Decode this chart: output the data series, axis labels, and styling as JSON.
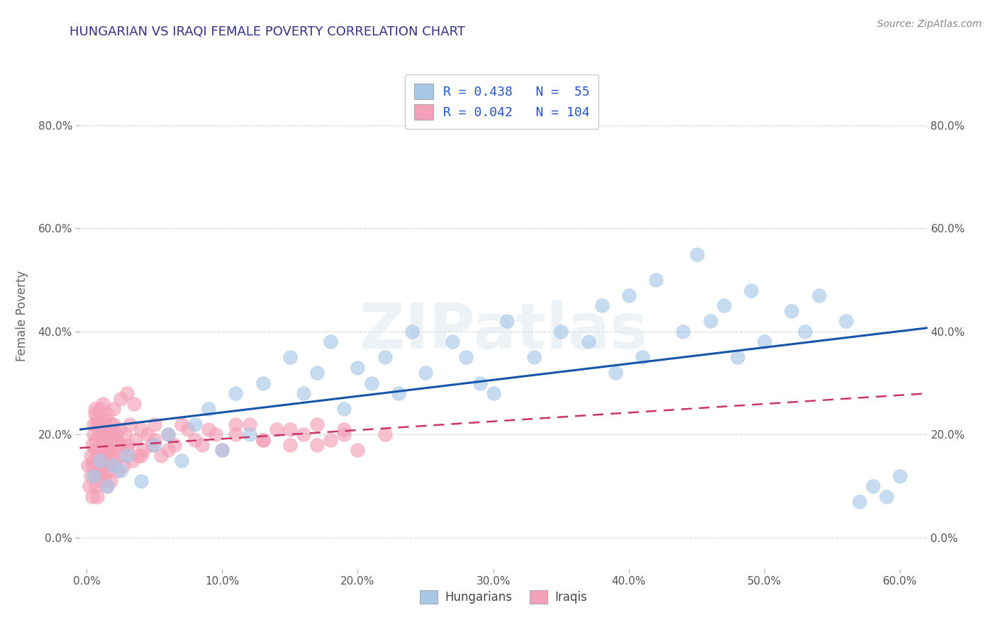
{
  "title": "HUNGARIAN VS IRAQI FEMALE POVERTY CORRELATION CHART",
  "source_text": "Source: ZipAtlas.com",
  "ylabel": "Female Poverty",
  "xlim": [
    -0.005,
    0.62
  ],
  "ylim": [
    -0.06,
    0.92
  ],
  "xticks": [
    0.0,
    0.1,
    0.2,
    0.3,
    0.4,
    0.5,
    0.6
  ],
  "yticks": [
    0.0,
    0.2,
    0.4,
    0.6,
    0.8
  ],
  "legend_line1": "R = 0.438   N =  55",
  "legend_line2": "R = 0.042   N = 104",
  "watermark": "ZIPatlas",
  "blue_color": "#a8c8e8",
  "pink_color": "#f4a0b8",
  "trend_blue": "#1555aa",
  "trend_pink": "#cc3366",
  "background_color": "#ffffff",
  "grid_color": "#cccccc",
  "title_color": "#333388",
  "hun_x": [
    0.005,
    0.01,
    0.015,
    0.02,
    0.025,
    0.03,
    0.04,
    0.05,
    0.06,
    0.07,
    0.08,
    0.09,
    0.1,
    0.11,
    0.12,
    0.13,
    0.15,
    0.16,
    0.17,
    0.18,
    0.19,
    0.2,
    0.21,
    0.22,
    0.23,
    0.24,
    0.25,
    0.27,
    0.28,
    0.29,
    0.3,
    0.31,
    0.33,
    0.35,
    0.37,
    0.38,
    0.39,
    0.4,
    0.41,
    0.42,
    0.44,
    0.45,
    0.46,
    0.47,
    0.48,
    0.49,
    0.5,
    0.52,
    0.53,
    0.54,
    0.56,
    0.57,
    0.58,
    0.59,
    0.6
  ],
  "hun_y": [
    0.12,
    0.15,
    0.1,
    0.14,
    0.13,
    0.16,
    0.11,
    0.18,
    0.2,
    0.15,
    0.22,
    0.25,
    0.17,
    0.28,
    0.2,
    0.3,
    0.35,
    0.28,
    0.32,
    0.38,
    0.25,
    0.33,
    0.3,
    0.35,
    0.28,
    0.4,
    0.32,
    0.38,
    0.35,
    0.3,
    0.28,
    0.42,
    0.35,
    0.4,
    0.38,
    0.45,
    0.32,
    0.47,
    0.35,
    0.5,
    0.4,
    0.55,
    0.42,
    0.45,
    0.35,
    0.48,
    0.38,
    0.44,
    0.4,
    0.47,
    0.42,
    0.07,
    0.1,
    0.08,
    0.12
  ],
  "irq_x": [
    0.001,
    0.002,
    0.003,
    0.003,
    0.004,
    0.004,
    0.005,
    0.005,
    0.005,
    0.006,
    0.006,
    0.006,
    0.007,
    0.007,
    0.007,
    0.008,
    0.008,
    0.008,
    0.009,
    0.009,
    0.009,
    0.01,
    0.01,
    0.01,
    0.011,
    0.011,
    0.012,
    0.012,
    0.013,
    0.013,
    0.014,
    0.014,
    0.015,
    0.015,
    0.016,
    0.016,
    0.017,
    0.017,
    0.018,
    0.018,
    0.019,
    0.019,
    0.02,
    0.02,
    0.021,
    0.022,
    0.023,
    0.024,
    0.025,
    0.026,
    0.027,
    0.028,
    0.03,
    0.032,
    0.034,
    0.036,
    0.038,
    0.04,
    0.042,
    0.045,
    0.048,
    0.05,
    0.055,
    0.06,
    0.065,
    0.07,
    0.08,
    0.09,
    0.1,
    0.11,
    0.12,
    0.13,
    0.14,
    0.15,
    0.16,
    0.17,
    0.18,
    0.19,
    0.2,
    0.22,
    0.02,
    0.03,
    0.025,
    0.035,
    0.015,
    0.012,
    0.008,
    0.006,
    0.004,
    0.01,
    0.018,
    0.022,
    0.03,
    0.04,
    0.05,
    0.06,
    0.075,
    0.085,
    0.095,
    0.11,
    0.13,
    0.15,
    0.17,
    0.19
  ],
  "irq_y": [
    0.14,
    0.1,
    0.16,
    0.12,
    0.18,
    0.08,
    0.2,
    0.15,
    0.22,
    0.12,
    0.17,
    0.24,
    0.1,
    0.19,
    0.14,
    0.22,
    0.16,
    0.08,
    0.2,
    0.13,
    0.17,
    0.22,
    0.11,
    0.15,
    0.19,
    0.13,
    0.21,
    0.16,
    0.23,
    0.12,
    0.18,
    0.15,
    0.2,
    0.1,
    0.17,
    0.13,
    0.21,
    0.16,
    0.18,
    0.11,
    0.2,
    0.14,
    0.17,
    0.22,
    0.15,
    0.19,
    0.13,
    0.21,
    0.16,
    0.18,
    0.14,
    0.2,
    0.17,
    0.22,
    0.15,
    0.19,
    0.16,
    0.21,
    0.17,
    0.2,
    0.18,
    0.22,
    0.16,
    0.2,
    0.18,
    0.22,
    0.19,
    0.21,
    0.17,
    0.2,
    0.22,
    0.19,
    0.21,
    0.18,
    0.2,
    0.22,
    0.19,
    0.21,
    0.17,
    0.2,
    0.25,
    0.28,
    0.27,
    0.26,
    0.24,
    0.26,
    0.23,
    0.25,
    0.14,
    0.25,
    0.22,
    0.2,
    0.18,
    0.16,
    0.19,
    0.17,
    0.21,
    0.18,
    0.2,
    0.22,
    0.19,
    0.21,
    0.18,
    0.2
  ]
}
